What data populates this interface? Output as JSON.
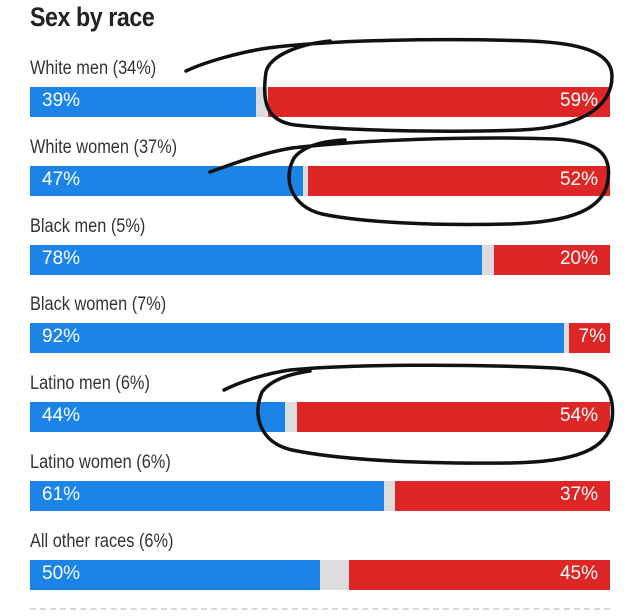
{
  "chart_data": {
    "type": "bar",
    "title": "Sex by race",
    "categories": [
      "White men (34%)",
      "White women (37%)",
      "Black men (5%)",
      "Black women (7%)",
      "Latino men (6%)",
      "Latino women (6%)",
      "All other races (6%)"
    ],
    "series": [
      {
        "values": [
          39,
          47,
          78,
          92,
          44,
          61,
          50
        ],
        "labels": [
          "39%",
          "47%",
          "78%",
          "92%",
          "44%",
          "61%",
          "50%"
        ],
        "color": "#1b84e6"
      },
      {
        "values": [
          59,
          52,
          20,
          7,
          54,
          37,
          45
        ],
        "labels": [
          "59%",
          "52%",
          "20%",
          "7%",
          "54%",
          "37%",
          "45%"
        ],
        "color": "#de2626"
      }
    ],
    "remainder_color": "#dcdcdc",
    "stacked": true,
    "xlim": [
      0,
      100
    ],
    "annotations": [
      "hand-drawn circles around the red segments of White men, White women and Latino men"
    ]
  }
}
